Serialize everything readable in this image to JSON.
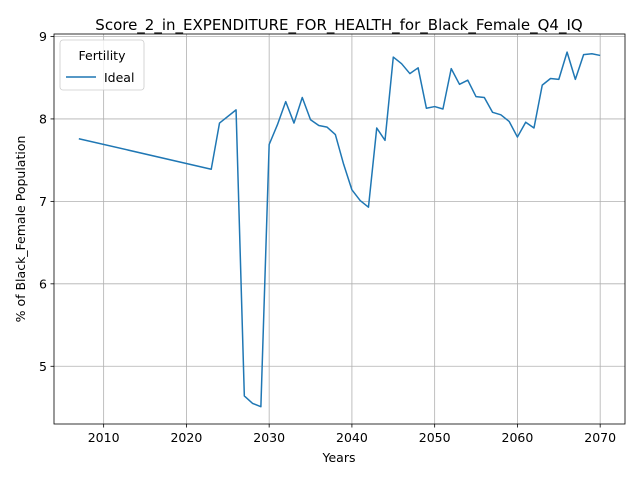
{
  "chart_data": {
    "type": "line",
    "title": "Score_2_in_EXPENDITURE_FOR_HEALTH_for_Black_Female_Q4_IQ",
    "xlabel": "Years",
    "ylabel": "% of Black_Female Population",
    "xlim": [
      2004,
      2073
    ],
    "ylim": [
      4.3,
      9.03
    ],
    "xticks": [
      2010,
      2020,
      2030,
      2040,
      2050,
      2060,
      2070
    ],
    "yticks": [
      5,
      6,
      7,
      8,
      9
    ],
    "grid": true,
    "legend": {
      "title": "Fertility",
      "placement": "top-left"
    },
    "series": [
      {
        "name": "Ideal",
        "color": "#1f77b4",
        "x": [
          2007,
          2023,
          2024,
          2026,
          2027,
          2028,
          2029,
          2030,
          2031,
          2032,
          2033,
          2034,
          2035,
          2036,
          2037,
          2038,
          2039,
          2040,
          2041,
          2042,
          2043,
          2044,
          2045,
          2046,
          2047,
          2048,
          2049,
          2050,
          2051,
          2052,
          2053,
          2054,
          2055,
          2056,
          2057,
          2058,
          2059,
          2060,
          2061,
          2062,
          2063,
          2064,
          2065,
          2066,
          2067,
          2068,
          2069,
          2070
        ],
        "y": [
          7.76,
          7.39,
          7.95,
          8.11,
          4.64,
          4.55,
          4.51,
          7.69,
          7.93,
          8.21,
          7.95,
          8.26,
          7.99,
          7.92,
          7.9,
          7.81,
          7.45,
          7.14,
          7.01,
          6.93,
          7.89,
          7.74,
          8.75,
          8.67,
          8.55,
          8.62,
          8.13,
          8.15,
          8.12,
          8.61,
          8.42,
          8.47,
          8.27,
          8.26,
          8.08,
          8.05,
          7.97,
          7.78,
          7.96,
          7.89,
          8.41,
          8.49,
          8.48,
          8.81,
          8.48,
          8.78,
          8.79,
          8.77
        ]
      }
    ]
  }
}
